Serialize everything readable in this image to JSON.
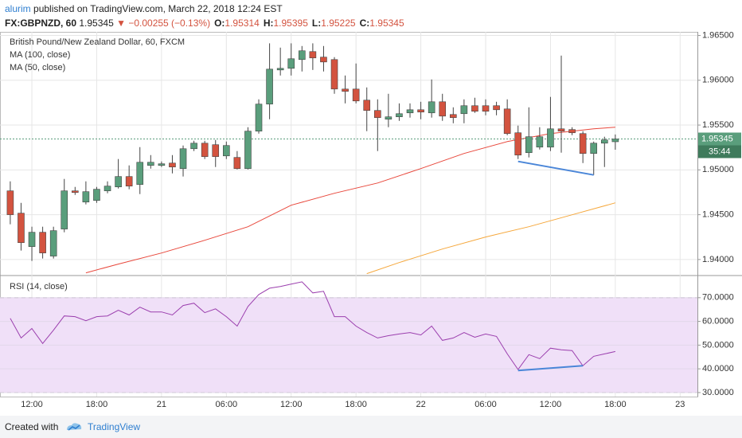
{
  "header": {
    "user": "alurim",
    "published": "published on TradingView.com, March 22, 2018 12:24 EST",
    "symbol": "FX:GBPNZD, 60",
    "price": "1.95345",
    "arrow": "▼",
    "change": "−0.00255 (−0.13%)",
    "ohlc": [
      {
        "label": "O:",
        "value": "1.95314"
      },
      {
        "label": "H:",
        "value": "1.95395"
      },
      {
        "label": "L:",
        "value": "1.95225"
      },
      {
        "label": "C:",
        "value": "1.95345"
      }
    ]
  },
  "chart_data": [
    {
      "type": "candlestick",
      "title": "British Pound/New Zealand Dollar, 60, FXCM",
      "x": [
        -2,
        -1,
        0,
        1,
        2,
        3,
        4,
        5,
        6,
        7,
        8,
        9,
        10,
        11,
        12,
        13,
        14,
        15,
        16,
        17,
        18,
        19,
        20,
        21,
        22,
        23,
        24,
        25,
        26,
        27,
        28,
        29,
        30,
        31,
        32,
        33,
        34,
        35,
        36,
        37,
        38,
        39,
        40,
        41,
        42,
        43,
        44,
        45,
        46,
        47,
        48,
        49,
        50,
        51,
        52,
        53,
        54
      ],
      "open": [
        1.94766,
        1.94517,
        1.94144,
        1.94304,
        1.94038,
        1.9434,
        1.94766,
        1.94641,
        1.94659,
        1.94766,
        1.9481,
        1.94926,
        1.94837,
        1.9505,
        1.9505,
        1.95076,
        1.95014,
        1.95236,
        1.95298,
        1.95281,
        1.95156,
        1.95139,
        1.95014,
        1.95432,
        1.95734,
        1.96115,
        1.96133,
        1.96231,
        1.9632,
        1.96258,
        1.96231,
        1.95902,
        1.95902,
        1.95778,
        1.95663,
        1.95565,
        1.95592,
        1.95636,
        1.95671,
        1.95636,
        1.9576,
        1.95618,
        1.95627,
        1.95716,
        1.95716,
        1.95716,
        1.9568,
        1.95414,
        1.95192,
        1.95254,
        1.95254,
        1.95458,
        1.9545,
        1.95405,
        1.95183,
        1.95298,
        1.95314
      ],
      "high": [
        1.94872,
        1.94632,
        1.94366,
        1.94366,
        1.94366,
        1.94899,
        1.9481,
        1.94872,
        1.9481,
        1.94872,
        1.95121,
        1.9505,
        1.95254,
        1.95165,
        1.95094,
        1.95165,
        1.95272,
        1.95325,
        1.95325,
        1.95334,
        1.95316,
        1.9521,
        1.95476,
        1.95787,
        1.96412,
        1.96364,
        1.96412,
        1.96382,
        1.96412,
        1.96382,
        1.96258,
        1.96053,
        1.96187,
        1.9592,
        1.95787,
        1.95849,
        1.95742,
        1.95742,
        1.9576,
        1.96009,
        1.95849,
        1.95698,
        1.95787,
        1.95805,
        1.95787,
        1.9576,
        1.95787,
        1.95494,
        1.95698,
        1.95476,
        1.95814,
        1.96275,
        1.95476,
        1.95432,
        1.95316,
        1.9537,
        1.95395
      ],
      "low": [
        1.94393,
        1.941,
        1.93984,
        1.94011,
        1.94011,
        1.94304,
        1.94721,
        1.94615,
        1.94632,
        1.94739,
        1.94792,
        1.94784,
        1.9473,
        1.95014,
        1.95032,
        1.94961,
        1.94926,
        1.9521,
        1.95121,
        1.95032,
        1.95121,
        1.95005,
        1.95005,
        1.95405,
        1.95565,
        1.96053,
        1.96053,
        1.96098,
        1.96115,
        1.96098,
        1.95849,
        1.95742,
        1.95742,
        1.95432,
        1.9521,
        1.95476,
        1.95547,
        1.95583,
        1.95565,
        1.95583,
        1.95547,
        1.9552,
        1.9552,
        1.95636,
        1.95609,
        1.95609,
        1.95387,
        1.95121,
        1.95139,
        1.95227,
        1.9521,
        1.95192,
        1.95387,
        1.95076,
        1.94943,
        1.95032,
        1.95225
      ],
      "close": [
        1.945,
        1.94188,
        1.94304,
        1.94073,
        1.94322,
        1.94766,
        1.94748,
        1.94757,
        1.94784,
        1.94819,
        1.94926,
        1.94819,
        1.95085,
        1.95085,
        1.95068,
        1.95032,
        1.95236,
        1.95298,
        1.95148,
        1.95148,
        1.95272,
        1.95014,
        1.95432,
        1.95734,
        1.96124,
        1.96133,
        1.9624,
        1.96329,
        1.96249,
        1.96204,
        1.95902,
        1.95876,
        1.95769,
        1.95663,
        1.95583,
        1.95592,
        1.95627,
        1.95671,
        1.95645,
        1.9576,
        1.956,
        1.95583,
        1.95716,
        1.95654,
        1.95654,
        1.95671,
        1.95405,
        1.95165,
        1.9537,
        1.9537,
        1.95458,
        1.95432,
        1.95414,
        1.95183,
        1.95298,
        1.95334,
        1.95345
      ],
      "up_color": "#5a9e7c",
      "down_color": "#d3533f",
      "series": [
        {
          "name": "MA (100, close)",
          "color": "#f5a73b",
          "x": [
            31,
            34,
            38,
            42,
            46,
            50,
            54
          ],
          "values": [
            1.93842,
            1.93966,
            1.94117,
            1.94251,
            1.94366,
            1.94499,
            1.94632
          ]
        },
        {
          "name": "MA (50, close)",
          "color": "#e8473b",
          "x": [
            5,
            8,
            12,
            16,
            20,
            24,
            28,
            32,
            36,
            40,
            44,
            48,
            52,
            54
          ],
          "values": [
            1.93851,
            1.93949,
            1.94073,
            1.94215,
            1.94366,
            1.94606,
            1.94739,
            1.94854,
            1.95014,
            1.95183,
            1.95316,
            1.95405,
            1.95458,
            1.95476
          ]
        }
      ],
      "trendline": {
        "color": "#4a86d8",
        "x": [
          45,
          52
        ],
        "values": [
          1.95094,
          1.94943
        ]
      },
      "countdown": "35:44",
      "xlim": [
        -2.95,
        61.6
      ],
      "ylim": [
        1.9383,
        1.9654
      ],
      "yticks": [
        {
          "value": 1.94,
          "label": "1.94000"
        },
        {
          "value": 1.945,
          "label": "1.94500"
        },
        {
          "value": 1.95,
          "label": "1.95000"
        },
        {
          "value": 1.955,
          "label": "1.95500"
        },
        {
          "value": 1.96,
          "label": "1.96000"
        },
        {
          "value": 1.965,
          "label": "1.96500"
        }
      ],
      "grid": true
    },
    {
      "type": "line",
      "title": "RSI (14, close)",
      "color": "#9b3fae",
      "x": [
        -2,
        -1,
        0,
        1,
        2,
        3,
        4,
        5,
        6,
        7,
        8,
        9,
        10,
        11,
        12,
        13,
        14,
        15,
        16,
        17,
        18,
        19,
        20,
        21,
        22,
        23,
        24,
        25,
        26,
        27,
        28,
        29,
        30,
        31,
        32,
        33,
        34,
        35,
        36,
        37,
        38,
        39,
        40,
        41,
        42,
        43,
        44,
        45,
        46,
        47,
        48,
        49,
        50,
        51,
        52,
        53,
        54
      ],
      "values": [
        61.3,
        53,
        57,
        50.7,
        56.3,
        62.3,
        62,
        60.3,
        62,
        62.3,
        64.7,
        62.7,
        66,
        64,
        64,
        62.7,
        66.7,
        67.7,
        63.7,
        65.3,
        62,
        58,
        66.3,
        71.3,
        74,
        74.7,
        75.7,
        76.7,
        72,
        72.7,
        62,
        62,
        58,
        55.3,
        53,
        54,
        54.7,
        55.3,
        54.3,
        58,
        52,
        53,
        55.3,
        53.3,
        54.7,
        53.7,
        46.3,
        39.7,
        46,
        44.3,
        48.7,
        48,
        47.7,
        41.3,
        45.3,
        46.3,
        47.3
      ],
      "band": [
        30,
        70
      ],
      "band_color": "#f0e0f8",
      "trendline": {
        "color": "#4a86d8",
        "x": [
          45,
          51
        ],
        "values": [
          39.3,
          41.3
        ]
      },
      "xlim": [
        -2.95,
        61.6
      ],
      "ylim": [
        28.3,
        79
      ],
      "yticks": [
        {
          "value": 30,
          "label": "30.0000"
        },
        {
          "value": 40,
          "label": "40.0000"
        },
        {
          "value": 50,
          "label": "50.0000"
        },
        {
          "value": 60,
          "label": "60.0000"
        },
        {
          "value": 70,
          "label": "70.0000"
        }
      ],
      "xticks": [
        {
          "value": 0,
          "label": "12:00"
        },
        {
          "value": 6,
          "label": "18:00"
        },
        {
          "value": 12,
          "label": "21"
        },
        {
          "value": 18,
          "label": "06:00"
        },
        {
          "value": 24,
          "label": "12:00"
        },
        {
          "value": 30,
          "label": "18:00"
        },
        {
          "value": 36,
          "label": "22"
        },
        {
          "value": 42,
          "label": "06:00"
        },
        {
          "value": 48,
          "label": "12:00"
        },
        {
          "value": 54,
          "label": "18:00"
        },
        {
          "value": 60,
          "label": "23"
        }
      ],
      "grid": true
    }
  ],
  "footer": {
    "created": "Created with",
    "brand": "TradingView"
  }
}
